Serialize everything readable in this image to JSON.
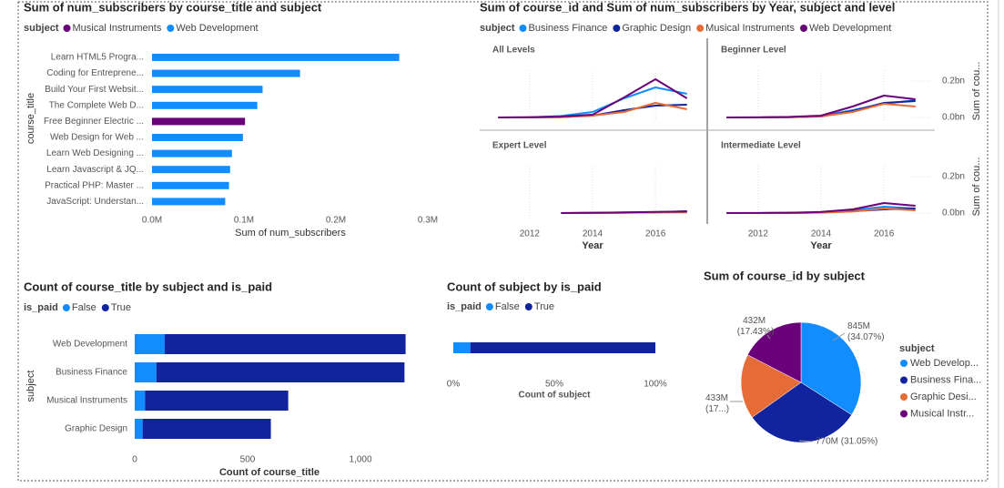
{
  "chart_data": [
    {
      "type": "bar",
      "orientation": "horizontal",
      "title": "Sum of num_subscribers by course_title and subject",
      "legend_title": "subject",
      "x_label": "Sum of num_subscribers",
      "y_label": "course_title",
      "categories": [
        "Learn HTML5 Progra...",
        "Coding for Entreprene...",
        "Build Your First Websit...",
        "The Complete Web D...",
        "Free Beginner Electric ...",
        "Web Design for Web ...",
        "Learn Web Designing ...",
        "Learn Javascript & JQ...",
        "Practical PHP: Master ...",
        "JavaScript: Understan..."
      ],
      "series": [
        {
          "name": "Musical Instruments",
          "color": "#6b007b",
          "values": [
            null,
            null,
            null,
            null,
            101154,
            null,
            null,
            null,
            null,
            null
          ]
        },
        {
          "name": "Web Development",
          "color": "#118dff",
          "values": [
            268923,
            161029,
            120291,
            114512,
            null,
            98867,
            87000,
            85000,
            83737,
            79612
          ]
        }
      ],
      "xlim": [
        0,
        300000
      ],
      "xticks": [
        {
          "value": 0,
          "label": "0.0M"
        },
        {
          "value": 100000,
          "label": "0.1M"
        },
        {
          "value": 200000,
          "label": "0.2M"
        },
        {
          "value": 300000,
          "label": "0.3M"
        }
      ]
    },
    {
      "type": "line",
      "title": "Sum of course_id and Sum of num_subscribers by Year, subject and level",
      "legend_title": "subject",
      "x_label": "Year",
      "y_label": "Sum of cou...",
      "series": [
        {
          "name": "Business Finance",
          "color": "#118dff"
        },
        {
          "name": "Graphic Design",
          "color": "#12239e"
        },
        {
          "name": "Musical Instruments",
          "color": "#e66c37"
        },
        {
          "name": "Web Development",
          "color": "#6b007b"
        }
      ],
      "x": [
        2011,
        2012,
        2013,
        2014,
        2015,
        2016,
        2017
      ],
      "xlim": [
        2010.5,
        2017.5
      ],
      "xticks": [
        2012,
        2014,
        2016
      ],
      "ylim": [
        0,
        300000000
      ],
      "yticks": [
        {
          "value": 0,
          "label": "0.0bn"
        },
        {
          "value": 200000000,
          "label": "0.2bn"
        }
      ],
      "grid": true,
      "panels": [
        {
          "title": "All Levels",
          "values": [
            [
              0,
              500000,
              8000000,
              30000000,
              105000000,
              165000000,
              130000000
            ],
            [
              0,
              500000,
              2000000,
              10000000,
              40000000,
              65000000,
              70000000
            ],
            [
              0,
              200000,
              1000000,
              10000000,
              30000000,
              80000000,
              45000000
            ],
            [
              0,
              1000000,
              5000000,
              15000000,
              110000000,
              210000000,
              105000000
            ]
          ]
        },
        {
          "title": "Beginner Level",
          "values": [
            [
              0,
              300000,
              2000000,
              8000000,
              40000000,
              75000000,
              95000000
            ],
            [
              0,
              200000,
              1000000,
              5000000,
              35000000,
              80000000,
              90000000
            ],
            [
              0,
              100000,
              1000000,
              6000000,
              30000000,
              75000000,
              60000000
            ],
            [
              0,
              500000,
              3000000,
              10000000,
              60000000,
              120000000,
              100000000
            ]
          ]
        },
        {
          "title": "Expert Level",
          "values": [
            [
              null,
              null,
              0,
              1000000,
              3000000,
              5000000,
              8000000
            ],
            [
              null,
              null,
              0,
              1000000,
              2000000,
              4000000,
              10000000
            ],
            [
              null,
              null,
              0,
              500000,
              1000000,
              3000000,
              4000000
            ],
            [
              null,
              null,
              0,
              1000000,
              4000000,
              6000000,
              9000000
            ]
          ]
        },
        {
          "title": "Intermediate Level",
          "values": [
            [
              0,
              200000,
              1000000,
              4000000,
              15000000,
              35000000,
              25000000
            ],
            [
              0,
              100000,
              500000,
              3000000,
              10000000,
              20000000,
              25000000
            ],
            [
              0,
              100000,
              500000,
              2000000,
              8000000,
              25000000,
              15000000
            ],
            [
              0,
              300000,
              2000000,
              6000000,
              20000000,
              55000000,
              40000000
            ]
          ]
        }
      ]
    },
    {
      "type": "stackedbar",
      "title": "Count of course_title by subject and is_paid",
      "legend_title": "is_paid",
      "x_label": "Count of course_title",
      "y_label": "subject",
      "categories": [
        "Web Development",
        "Business Finance",
        "Musical Instruments",
        "Graphic Design"
      ],
      "series": [
        {
          "name": "False",
          "color": "#118dff",
          "values": [
            133,
            96,
            46,
            35
          ]
        },
        {
          "name": "True",
          "color": "#12239e",
          "values": [
            1067,
            1099,
            634,
            568
          ]
        }
      ],
      "xlim": [
        0,
        1250
      ],
      "xticks": [
        0,
        500,
        {
          "value": 1000,
          "label": "1,000"
        }
      ]
    },
    {
      "type": "percentbar",
      "title": "Count of subject by is_paid",
      "legend_title": "is_paid",
      "x_label": "Count of subject",
      "categories": [
        null
      ],
      "series": [
        {
          "name": "False",
          "color": "#118dff",
          "values": [
            8.43
          ]
        },
        {
          "name": "True",
          "color": "#12239e",
          "values": [
            91.57
          ]
        }
      ],
      "xlim": [
        0,
        100
      ],
      "xticks": [
        {
          "value": 0,
          "label": "0%"
        },
        {
          "value": 50,
          "label": "50%"
        },
        {
          "value": 100,
          "label": "100%"
        }
      ]
    },
    {
      "type": "pie",
      "title": "Sum of course_id by subject",
      "legend_title": "subject",
      "categories": [
        "Web Develop...",
        "Business Fina...",
        "Graphic Desi...",
        "Musical Instr..."
      ],
      "values": [
        845000000,
        770000000,
        433000000,
        432000000
      ],
      "value_labels": [
        "845M (34.07%)",
        "770M (31.05%)",
        "433M (17...)",
        "432M (17.43%)"
      ],
      "colors": [
        "#118dff",
        "#12239e",
        "#e66c37",
        "#6b007b"
      ]
    }
  ]
}
